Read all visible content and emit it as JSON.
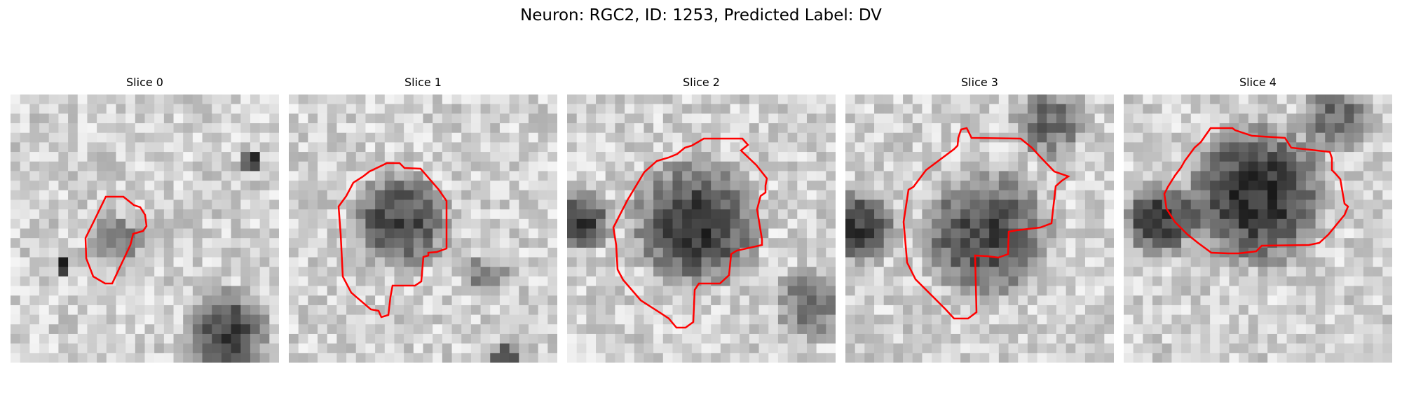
{
  "figure": {
    "title": "Neuron: RGC2, ID: 1253, Predicted Label: DV"
  },
  "panels": [
    {
      "title": "Slice 0"
    },
    {
      "title": "Slice 1"
    },
    {
      "title": "Slice 2"
    },
    {
      "title": "Slice 3"
    },
    {
      "title": "Slice 4"
    }
  ],
  "colors": {
    "contour": "#ff0000",
    "background": "#ffffff"
  }
}
